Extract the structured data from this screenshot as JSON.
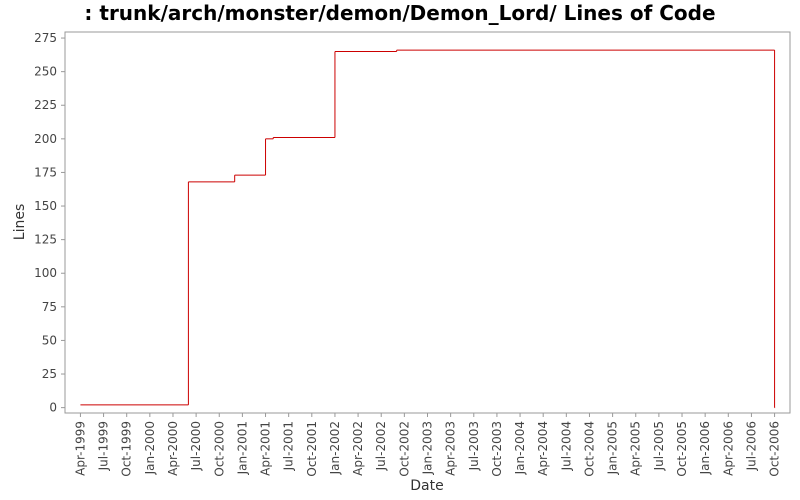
{
  "chart_data": {
    "type": "step",
    "title": ": trunk/arch/monster/demon/Demon_Lord/ Lines of Code",
    "x_label": "Date",
    "y_label": "Lines",
    "series": [
      {
        "name": "Lines",
        "color": "#cc0000",
        "x": [
          "1999-04",
          "2000-06",
          "2000-12",
          "2001-04",
          "2001-05",
          "2002-01",
          "2002-09",
          "2006-10"
        ],
        "values": [
          2,
          168,
          173,
          200,
          201,
          265,
          266,
          0
        ]
      }
    ],
    "xlim": [
      "1999-02",
      "2006-12"
    ],
    "xticks": [
      {
        "value": "1999-04",
        "label": "Apr-1999"
      },
      {
        "value": "1999-07",
        "label": "Jul-1999"
      },
      {
        "value": "1999-10",
        "label": "Oct-1999"
      },
      {
        "value": "2000-01",
        "label": "Jan-2000"
      },
      {
        "value": "2000-04",
        "label": "Apr-2000"
      },
      {
        "value": "2000-07",
        "label": "Jul-2000"
      },
      {
        "value": "2000-10",
        "label": "Oct-2000"
      },
      {
        "value": "2001-01",
        "label": "Jan-2001"
      },
      {
        "value": "2001-04",
        "label": "Apr-2001"
      },
      {
        "value": "2001-07",
        "label": "Jul-2001"
      },
      {
        "value": "2001-10",
        "label": "Oct-2001"
      },
      {
        "value": "2002-01",
        "label": "Jan-2002"
      },
      {
        "value": "2002-04",
        "label": "Apr-2002"
      },
      {
        "value": "2002-07",
        "label": "Jul-2002"
      },
      {
        "value": "2002-10",
        "label": "Oct-2002"
      },
      {
        "value": "2003-01",
        "label": "Jan-2003"
      },
      {
        "value": "2003-04",
        "label": "Apr-2003"
      },
      {
        "value": "2003-07",
        "label": "Jul-2003"
      },
      {
        "value": "2003-10",
        "label": "Oct-2003"
      },
      {
        "value": "2004-01",
        "label": "Jan-2004"
      },
      {
        "value": "2004-04",
        "label": "Apr-2004"
      },
      {
        "value": "2004-07",
        "label": "Jul-2004"
      },
      {
        "value": "2004-10",
        "label": "Oct-2004"
      },
      {
        "value": "2005-01",
        "label": "Jan-2005"
      },
      {
        "value": "2005-04",
        "label": "Apr-2005"
      },
      {
        "value": "2005-07",
        "label": "Jul-2005"
      },
      {
        "value": "2005-10",
        "label": "Oct-2005"
      },
      {
        "value": "2006-01",
        "label": "Jan-2006"
      },
      {
        "value": "2006-04",
        "label": "Apr-2006"
      },
      {
        "value": "2006-07",
        "label": "Jul-2006"
      },
      {
        "value": "2006-10",
        "label": "Oct-2006"
      }
    ],
    "ylim": [
      -4,
      279.5
    ],
    "yticks": [
      0,
      25,
      50,
      75,
      100,
      125,
      150,
      175,
      200,
      225,
      250,
      275
    ],
    "grid": false
  }
}
